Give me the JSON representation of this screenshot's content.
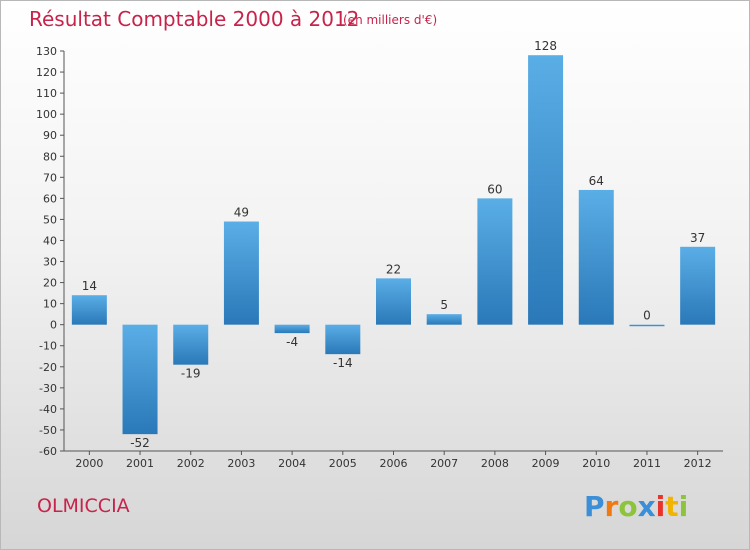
{
  "header": {
    "title": "Résultat Comptable 2000 à 2012",
    "subtitle": "(en milliers d'€)"
  },
  "footer": {
    "commune": "OLMICCIA",
    "logo_text": "Proxiti"
  },
  "colors": {
    "title": "#c8234a",
    "bar_top": "#5aaee6",
    "bar_bottom": "#2a78b8"
  },
  "chart_data": {
    "type": "bar",
    "title": "Résultat Comptable 2000 à 2012",
    "xlabel": "",
    "ylabel": "",
    "categories": [
      "2000",
      "2001",
      "2002",
      "2003",
      "2004",
      "2005",
      "2006",
      "2007",
      "2008",
      "2009",
      "2010",
      "2011",
      "2012"
    ],
    "values": [
      14,
      -52,
      -19,
      49,
      -4,
      -14,
      22,
      5,
      60,
      128,
      64,
      0,
      37
    ],
    "ylim": [
      -60,
      130
    ],
    "ytick_step": 10,
    "grid": false
  }
}
